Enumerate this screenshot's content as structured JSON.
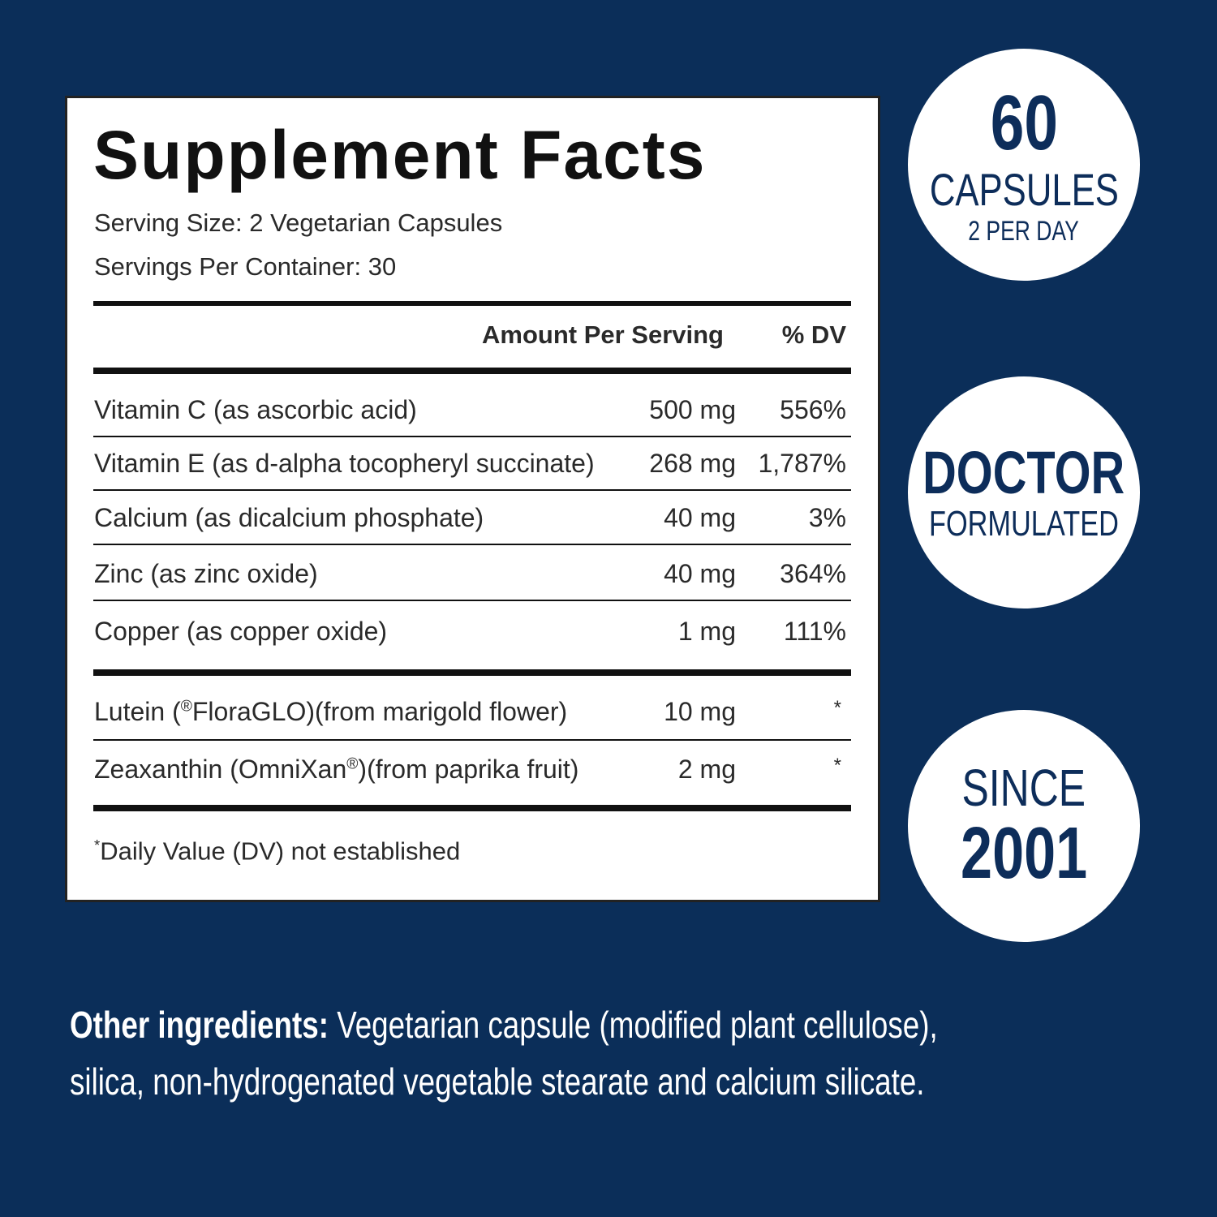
{
  "supplement_facts": {
    "title": "Supplement Facts",
    "serving_size": "Serving Size: 2 Vegetarian Capsules",
    "servings_per_container": "Servings Per Container: 30",
    "header": {
      "amount": "Amount Per Serving",
      "dv": "% DV"
    },
    "rows": [
      {
        "name": "Vitamin C (as ascorbic acid)",
        "amount": "500 mg",
        "dv": "556%"
      },
      {
        "name": "Vitamin E (as d-alpha tocopheryl succinate)",
        "amount": "268 mg",
        "dv": "1,787%"
      },
      {
        "name": "Calcium (as dicalcium phosphate)",
        "amount": "40 mg",
        "dv": "3%"
      },
      {
        "name": "Zinc (as zinc oxide)",
        "amount": "40 mg",
        "dv": "364%"
      },
      {
        "name": "Copper (as copper oxide)",
        "amount": "1 mg",
        "dv": "111%"
      }
    ],
    "other_rows": [
      {
        "name_before": "Lutein (",
        "name_sup": "®",
        "name_after": "FloraGLO)(from marigold flower)",
        "amount": "10 mg",
        "dv": "*"
      },
      {
        "name_before": "Zeaxanthin (OmniXan",
        "name_sup": "®",
        "name_after": ")(from paprika fruit)",
        "amount": "2 mg",
        "dv": "*"
      }
    ],
    "footnote": {
      "mark": "*",
      "text": "Daily Value (DV) not established"
    }
  },
  "badges": [
    {
      "lines": [
        "60",
        "CAPSULES",
        "2 PER DAY"
      ]
    },
    {
      "lines": [
        "DOCTOR",
        "FORMULATED"
      ]
    },
    {
      "lines": [
        "SINCE",
        "2001"
      ]
    }
  ],
  "other_ingredients": {
    "label": "Other ingredients:",
    "lines": [
      "Vegetarian capsule (modified plant cellulose),",
      "silica, non-hydrogenated vegetable stearate and calcium silicate."
    ]
  }
}
